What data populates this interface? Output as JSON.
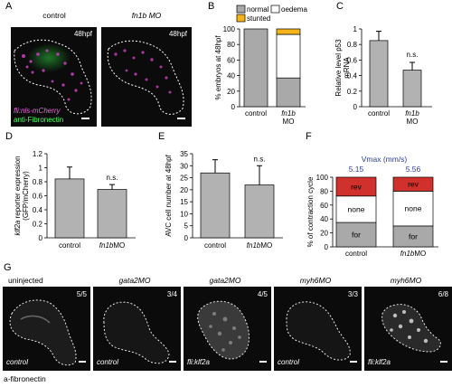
{
  "panels": {
    "A": {
      "label": "A",
      "titles": [
        "control",
        "fn1b MO"
      ],
      "timestamps": [
        "48hpf",
        "48hpf"
      ],
      "legend_line1": "fli:nls-mCherry",
      "legend_line2": "anti-Fibronectin"
    },
    "B": {
      "label": "B"
    },
    "C": {
      "label": "C"
    },
    "D": {
      "label": "D"
    },
    "E": {
      "label": "E"
    },
    "F": {
      "label": "F"
    },
    "G": {
      "label": "G",
      "titles": [
        "uninjected",
        "gata2MO",
        "gata2MO",
        "myh6MO",
        "myh6MO"
      ],
      "counts": [
        "5/5",
        "3/4",
        "4/5",
        "3/3",
        "6/8"
      ],
      "conditions": [
        "control",
        "control",
        "fli:klf2a",
        "control",
        "fli:klf2a"
      ],
      "footer": "a-fibronectin"
    }
  },
  "colors": {
    "bar_gray": "#b2b2b2",
    "normal": "#a9a9a9",
    "oedema": "#ffffff",
    "stunted": "#f4b41a",
    "rev": "#d0312d",
    "vmax_blue": "#2b3d9a",
    "fibronectin_green": "#2ecc40",
    "mcherry_magenta": "#d23fc7"
  },
  "chart_data": [
    {
      "id": "B",
      "type": "bar",
      "stacked": true,
      "categories": [
        "control",
        "fn1b MO"
      ],
      "series": [
        {
          "name": "normal",
          "values": [
            100,
            37
          ]
        },
        {
          "name": "oedema",
          "values": [
            0,
            56
          ]
        },
        {
          "name": "stunted",
          "values": [
            0,
            7
          ]
        }
      ],
      "ylabel": "% embryos at 48hpf",
      "ylim": [
        0,
        100
      ],
      "yticks": [
        "0",
        "20",
        "40",
        "60",
        "80",
        "100"
      ],
      "legend": "top"
    },
    {
      "id": "C",
      "type": "bar",
      "categories": [
        "control",
        "fn1b MO"
      ],
      "values": [
        0.85,
        0.47
      ],
      "errors": [
        0.12,
        0.1
      ],
      "ylabel": "Relative level p53 mRNA",
      "ylim": [
        0,
        1
      ],
      "yticks": [
        "0",
        "0.2",
        "0.4",
        "0.6",
        "0.8",
        "1"
      ],
      "annotations": [
        "n.s."
      ]
    },
    {
      "id": "D",
      "type": "bar",
      "categories": [
        "control",
        "fn1bMO"
      ],
      "values": [
        0.84,
        0.69
      ],
      "errors": [
        0.17,
        0.07
      ],
      "ylabel": "klf2a reporter expression (GFP/mCherry)",
      "ylim": [
        0,
        1.2
      ],
      "yticks": [
        "0",
        "0.2",
        "0.4",
        "0.6",
        "0.8",
        "1",
        "1.2"
      ],
      "annotations": [
        "n.s."
      ]
    },
    {
      "id": "E",
      "type": "bar",
      "categories": [
        "control",
        "fn1bMO"
      ],
      "values": [
        27,
        22
      ],
      "errors": [
        5.5,
        8
      ],
      "ylabel": "AVC cell number at 48hpf",
      "ylim": [
        0,
        35
      ],
      "yticks": [
        "0",
        "5",
        "10",
        "15",
        "20",
        "25",
        "30",
        "35"
      ],
      "annotations": [
        "n.s."
      ]
    },
    {
      "id": "F",
      "type": "bar",
      "stacked": true,
      "categories": [
        "control",
        "fn1bMO"
      ],
      "series": [
        {
          "name": "for",
          "values": [
            35,
            30
          ]
        },
        {
          "name": "none",
          "values": [
            38,
            50
          ]
        },
        {
          "name": "rev",
          "values": [
            27,
            20
          ]
        }
      ],
      "ylabel": "% of contraction cycle",
      "ylim": [
        0,
        100
      ],
      "yticks": [
        "0",
        "20",
        "40",
        "60",
        "80",
        "100"
      ],
      "header": "Vmax (mm/s)",
      "vmax": [
        "5.15",
        "5.56"
      ]
    }
  ]
}
